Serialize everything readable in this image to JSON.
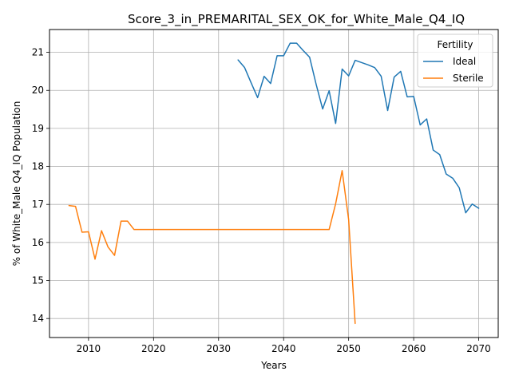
{
  "chart_data": {
    "type": "line",
    "title": "Score_3_in_PREMARITAL_SEX_OK_for_White_Male_Q4_IQ",
    "xlabel": "Years",
    "ylabel": "% of White_Male Q4_IQ Population",
    "xlim": [
      2004,
      2073
    ],
    "ylim": [
      13.5,
      21.6
    ],
    "xticks": [
      2010,
      2020,
      2030,
      2040,
      2050,
      2060,
      2070
    ],
    "yticks": [
      14,
      15,
      16,
      17,
      18,
      19,
      20,
      21
    ],
    "grid": true,
    "legend": {
      "title": "Fertility",
      "placement": "top-right"
    },
    "series": [
      {
        "name": "Ideal",
        "color": "#1f77b4",
        "x": [
          2033,
          2034,
          2035,
          2036,
          2037,
          2038,
          2039,
          2040,
          2041,
          2042,
          2043,
          2044,
          2045,
          2046,
          2047,
          2048,
          2049,
          2050,
          2051,
          2052,
          2053,
          2054,
          2055,
          2056,
          2057,
          2058,
          2059,
          2060,
          2061,
          2062,
          2063,
          2064,
          2065,
          2066,
          2067,
          2068,
          2069,
          2070
        ],
        "y": [
          20.8,
          20.6,
          20.2,
          19.81,
          20.37,
          20.18,
          20.91,
          20.91,
          21.24,
          21.24,
          21.05,
          20.87,
          20.16,
          19.51,
          19.99,
          19.13,
          20.56,
          20.38,
          20.79,
          20.73,
          20.67,
          20.6,
          20.37,
          19.47,
          20.35,
          20.5,
          19.83,
          19.84,
          19.09,
          19.25,
          18.43,
          18.31,
          17.8,
          17.69,
          17.44,
          16.78,
          17.01,
          16.9
        ]
      },
      {
        "name": "Sterile",
        "color": "#ff7f0e",
        "x": [
          2007,
          2008,
          2009,
          2010,
          2011,
          2012,
          2013,
          2014,
          2015,
          2016,
          2017,
          2018,
          2019,
          2020,
          2021,
          2022,
          2023,
          2024,
          2025,
          2026,
          2027,
          2028,
          2029,
          2030,
          2031,
          2032,
          2033,
          2034,
          2035,
          2036,
          2037,
          2038,
          2039,
          2040,
          2041,
          2042,
          2043,
          2044,
          2045,
          2046,
          2047,
          2048,
          2049,
          2050,
          2051
        ],
        "y": [
          16.97,
          16.95,
          16.27,
          16.28,
          15.56,
          16.31,
          15.88,
          15.66,
          16.56,
          16.56,
          16.34,
          16.34,
          16.34,
          16.34,
          16.34,
          16.34,
          16.34,
          16.34,
          16.34,
          16.34,
          16.34,
          16.34,
          16.34,
          16.34,
          16.34,
          16.34,
          16.34,
          16.34,
          16.34,
          16.34,
          16.34,
          16.34,
          16.34,
          16.34,
          16.34,
          16.34,
          16.34,
          16.34,
          16.34,
          16.34,
          16.34,
          17.02,
          17.89,
          16.6,
          13.87
        ]
      }
    ]
  }
}
